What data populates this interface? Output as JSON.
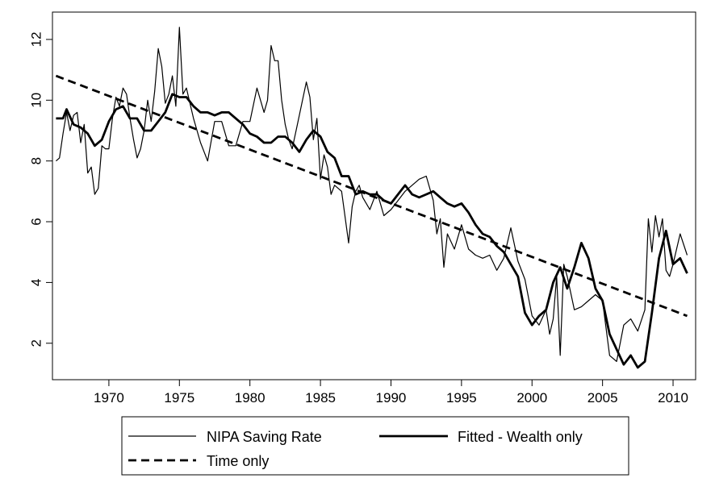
{
  "chart_data": {
    "type": "line",
    "title": "",
    "xlabel": "",
    "ylabel": "",
    "xlim": [
      1966,
      2011.6
    ],
    "ylim": [
      0.8,
      12.9
    ],
    "x_ticks": [
      1970,
      1975,
      1980,
      1985,
      1990,
      1995,
      2000,
      2005,
      2010
    ],
    "x_tick_labels": [
      "1970",
      "1975",
      "1980",
      "1985",
      "1990",
      "1995",
      "2000",
      "2005",
      "2010"
    ],
    "y_ticks": [
      2,
      4,
      6,
      8,
      10,
      12
    ],
    "y_tick_labels": [
      "2",
      "4",
      "6",
      "8",
      "10",
      "12"
    ],
    "grid": false,
    "legend_position": "bottom",
    "series": [
      {
        "name": "NIPA Saving Rate",
        "style": "thin-solid",
        "color": "#000000",
        "x": [
          1966.25,
          1966.5,
          1966.75,
          1967.0,
          1967.25,
          1967.5,
          1967.75,
          1968.0,
          1968.25,
          1968.5,
          1968.75,
          1969.0,
          1969.25,
          1969.5,
          1969.75,
          1970.0,
          1970.25,
          1970.5,
          1970.75,
          1971.0,
          1971.25,
          1971.5,
          1971.75,
          1972.0,
          1972.25,
          1972.5,
          1972.75,
          1973.0,
          1973.25,
          1973.5,
          1973.75,
          1974.0,
          1974.25,
          1974.5,
          1974.75,
          1975.0,
          1975.25,
          1975.5,
          1975.75,
          1976.0,
          1976.5,
          1977.0,
          1977.5,
          1978.0,
          1978.5,
          1979.0,
          1979.5,
          1980.0,
          1980.5,
          1981.0,
          1981.25,
          1981.5,
          1981.75,
          1982.0,
          1982.25,
          1982.5,
          1982.75,
          1983.0,
          1983.5,
          1984.0,
          1984.25,
          1984.5,
          1984.75,
          1985.0,
          1985.25,
          1985.5,
          1985.75,
          1986.0,
          1986.5,
          1987.0,
          1987.25,
          1987.5,
          1987.75,
          1988.0,
          1988.5,
          1989.0,
          1989.5,
          1990.0,
          1990.5,
          1991.0,
          1991.5,
          1992.0,
          1992.5,
          1993.0,
          1993.25,
          1993.5,
          1993.75,
          1994.0,
          1994.5,
          1995.0,
          1995.5,
          1996.0,
          1996.5,
          1997.0,
          1997.5,
          1998.0,
          1998.5,
          1999.0,
          1999.5,
          2000.0,
          2000.5,
          2001.0,
          2001.25,
          2001.5,
          2001.75,
          2002.0,
          2002.25,
          2002.5,
          2003.0,
          2003.5,
          2004.0,
          2004.5,
          2005.0,
          2005.5,
          2006.0,
          2006.5,
          2007.0,
          2007.5,
          2008.0,
          2008.25,
          2008.5,
          2008.75,
          2009.0,
          2009.25,
          2009.5,
          2009.75,
          2010.0,
          2010.5,
          2011.0
        ],
        "values": [
          8.0,
          8.1,
          8.9,
          9.6,
          9.0,
          9.5,
          9.6,
          8.6,
          9.2,
          7.6,
          7.8,
          6.9,
          7.1,
          8.5,
          8.4,
          8.4,
          9.4,
          10.1,
          9.8,
          10.4,
          10.2,
          9.4,
          8.7,
          8.1,
          8.4,
          9.0,
          10.0,
          9.3,
          10.3,
          11.7,
          11.1,
          9.9,
          10.2,
          10.8,
          9.8,
          12.4,
          10.2,
          10.4,
          9.9,
          9.4,
          8.6,
          8.0,
          9.3,
          9.3,
          8.5,
          8.5,
          9.3,
          9.3,
          10.4,
          9.6,
          10.0,
          11.8,
          11.3,
          11.3,
          10.0,
          9.2,
          8.7,
          8.4,
          9.5,
          10.6,
          10.1,
          8.7,
          9.4,
          7.4,
          8.2,
          7.8,
          6.9,
          7.2,
          7.0,
          5.3,
          6.5,
          7.0,
          7.2,
          6.8,
          6.4,
          7.0,
          6.2,
          6.4,
          6.7,
          7.0,
          7.2,
          7.4,
          7.5,
          6.7,
          5.6,
          6.1,
          4.5,
          5.6,
          5.1,
          5.9,
          5.1,
          4.9,
          4.8,
          4.9,
          4.4,
          4.8,
          5.8,
          4.7,
          4.1,
          2.9,
          2.6,
          3.1,
          2.3,
          2.8,
          4.2,
          1.6,
          4.6,
          4.2,
          3.1,
          3.2,
          3.4,
          3.6,
          3.4,
          1.6,
          1.4,
          2.6,
          2.8,
          2.4,
          3.1,
          6.1,
          5.0,
          6.2,
          5.5,
          6.1,
          4.4,
          4.2,
          4.6,
          5.6,
          4.9
        ]
      },
      {
        "name": "Fitted - Wealth only",
        "style": "thick-solid",
        "color": "#000000",
        "x": [
          1966.25,
          1966.75,
          1967.0,
          1967.5,
          1968.0,
          1968.5,
          1969.0,
          1969.5,
          1970.0,
          1970.5,
          1971.0,
          1971.5,
          1972.0,
          1972.5,
          1973.0,
          1973.5,
          1974.0,
          1974.5,
          1975.0,
          1975.5,
          1976.0,
          1976.5,
          1977.0,
          1977.5,
          1978.0,
          1978.5,
          1979.0,
          1979.5,
          1980.0,
          1980.5,
          1981.0,
          1981.5,
          1982.0,
          1982.5,
          1983.0,
          1983.5,
          1984.0,
          1984.5,
          1985.0,
          1985.5,
          1986.0,
          1986.5,
          1987.0,
          1987.5,
          1988.0,
          1988.5,
          1989.0,
          1989.5,
          1990.0,
          1990.5,
          1991.0,
          1991.5,
          1992.0,
          1992.5,
          1993.0,
          1993.5,
          1994.0,
          1994.5,
          1995.0,
          1995.5,
          1996.0,
          1996.5,
          1997.0,
          1997.5,
          1998.0,
          1998.5,
          1999.0,
          1999.5,
          2000.0,
          2000.5,
          2001.0,
          2001.5,
          2002.0,
          2002.5,
          2003.0,
          2003.5,
          2004.0,
          2004.5,
          2005.0,
          2005.5,
          2006.0,
          2006.5,
          2007.0,
          2007.5,
          2008.0,
          2008.5,
          2009.0,
          2009.5,
          2010.0,
          2010.5,
          2011.0
        ],
        "values": [
          9.4,
          9.4,
          9.7,
          9.2,
          9.1,
          8.9,
          8.5,
          8.7,
          9.3,
          9.7,
          9.8,
          9.4,
          9.4,
          9.0,
          9.0,
          9.3,
          9.6,
          10.2,
          10.1,
          10.1,
          9.8,
          9.6,
          9.6,
          9.5,
          9.6,
          9.6,
          9.4,
          9.2,
          8.9,
          8.8,
          8.6,
          8.6,
          8.8,
          8.8,
          8.6,
          8.3,
          8.7,
          9.0,
          8.8,
          8.3,
          8.1,
          7.5,
          7.5,
          6.9,
          7.0,
          6.9,
          6.9,
          6.7,
          6.6,
          6.9,
          7.2,
          6.9,
          6.8,
          6.9,
          7.0,
          6.8,
          6.6,
          6.5,
          6.6,
          6.3,
          5.9,
          5.6,
          5.5,
          5.2,
          5.0,
          4.6,
          4.2,
          3.0,
          2.6,
          2.9,
          3.1,
          4.0,
          4.5,
          3.8,
          4.5,
          5.3,
          4.8,
          3.8,
          3.4,
          2.3,
          1.8,
          1.3,
          1.6,
          1.2,
          1.4,
          3.0,
          4.8,
          5.7,
          4.6,
          4.8,
          4.3
        ]
      },
      {
        "name": "Time only",
        "style": "thick-dashed",
        "color": "#000000",
        "x": [
          1966.25,
          2011.0
        ],
        "values": [
          10.8,
          2.9
        ]
      }
    ]
  }
}
